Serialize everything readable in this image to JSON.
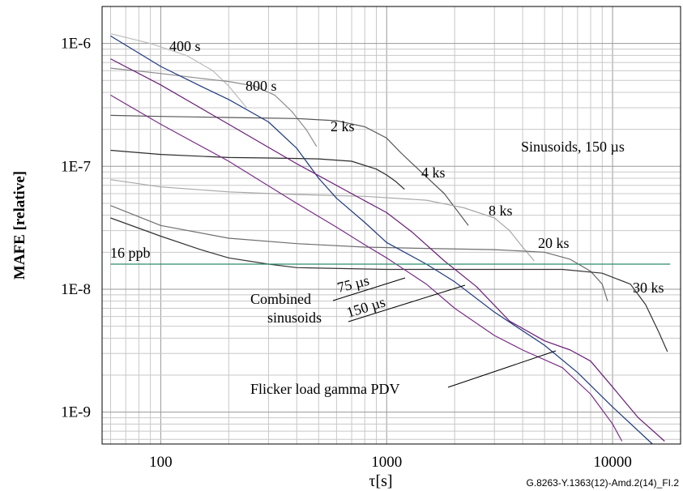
{
  "chart_data": {
    "type": "line",
    "title": "",
    "xlabel": "τ[s]",
    "ylabel": "MAFE [relative]",
    "x_scale": "log",
    "y_scale": "log",
    "xlim": [
      55,
      20000
    ],
    "ylim": [
      5.5e-10,
      2e-06
    ],
    "grid": true,
    "x_ticks": [
      {
        "value": 100,
        "label": "100"
      },
      {
        "value": 1000,
        "label": "1000"
      },
      {
        "value": 10000,
        "label": "10000"
      }
    ],
    "y_ticks": [
      {
        "value": 1e-06,
        "label": "1E-6"
      },
      {
        "value": 1e-07,
        "label": "1E-7"
      },
      {
        "value": 1e-08,
        "label": "1E-8"
      },
      {
        "value": 1e-09,
        "label": "1E-9"
      }
    ],
    "series": [
      {
        "name": "400 s",
        "color": "#bbbbbb",
        "x": [
          60,
          90,
          130,
          170,
          200,
          240
        ],
        "y": [
          1.2e-06,
          1e-06,
          8e-07,
          6e-07,
          4.5e-07,
          3e-07
        ]
      },
      {
        "name": "800 s",
        "color": "#8c8c8c",
        "x": [
          60,
          100,
          150,
          200,
          260,
          320,
          380,
          440,
          490
        ],
        "y": [
          6.3e-07,
          5.7e-07,
          5.2e-07,
          4.9e-07,
          4.5e-07,
          3.8e-07,
          2.8e-07,
          2e-07,
          1.45e-07
        ]
      },
      {
        "name": "2 ks",
        "color": "#555555",
        "x": [
          60,
          100,
          200,
          400,
          600,
          800,
          1000,
          1150,
          1300,
          1800,
          2300
        ],
        "y": [
          2.6e-07,
          2.55e-07,
          2.5e-07,
          2.45e-07,
          2.35e-07,
          2.1e-07,
          1.7e-07,
          1.3e-07,
          1.05e-07,
          6e-08,
          3.3e-08
        ]
      },
      {
        "name": "4 ks",
        "color": "#2b2b2b",
        "x": [
          60,
          100,
          200,
          300,
          500,
          700,
          900,
          1000,
          1100,
          1200
        ],
        "y": [
          1.35e-07,
          1.25e-07,
          1.18e-07,
          1.17e-07,
          1.15e-07,
          1.1e-07,
          9.5e-08,
          8.5e-08,
          7.5e-08,
          6.5e-08
        ]
      },
      {
        "name": "8 ks",
        "color": "#a8a8a8",
        "x": [
          60,
          100,
          200,
          400,
          800,
          1500,
          2200,
          3000,
          3500,
          4000,
          4500
        ],
        "y": [
          7.8e-08,
          6.8e-08,
          6.2e-08,
          5.9e-08,
          5.7e-08,
          5.3e-08,
          4.6e-08,
          3.8e-08,
          3e-08,
          2.2e-08,
          1.7e-08
        ]
      },
      {
        "name": "20 ks",
        "color": "#6e6e6e",
        "x": [
          60,
          100,
          200,
          400,
          800,
          1500,
          3000,
          5000,
          6500,
          8000,
          9000,
          9500
        ],
        "y": [
          4.8e-08,
          3.3e-08,
          2.6e-08,
          2.35e-08,
          2.2e-08,
          2.15e-08,
          2.1e-08,
          2e-08,
          1.75e-08,
          1.4e-08,
          1.1e-08,
          8e-09
        ]
      },
      {
        "name": "30 ks",
        "color": "#333333",
        "x": [
          60,
          100,
          150,
          200,
          300,
          400,
          1000,
          3000,
          6000,
          9000,
          12000,
          14000,
          16000,
          17500
        ],
        "y": [
          3.8e-08,
          2.7e-08,
          2.1e-08,
          1.8e-08,
          1.6e-08,
          1.5e-08,
          1.45e-08,
          1.45e-08,
          1.45e-08,
          1.35e-08,
          1.1e-08,
          7.5e-09,
          4.5e-09,
          3.1e-09
        ]
      },
      {
        "name": "Flicker load gamma PDV",
        "color": "#1f3a80",
        "x": [
          60,
          100,
          150,
          200,
          300,
          400,
          500,
          600,
          800,
          1000,
          1500,
          2000,
          3000,
          5000,
          7000,
          10000,
          15000
        ],
        "y": [
          1.15e-06,
          6.5e-07,
          4.5e-07,
          3.5e-07,
          2.3e-07,
          1.4e-07,
          8e-08,
          5.5e-08,
          3.5e-08,
          2.4e-08,
          1.6e-08,
          1.15e-08,
          6.5e-09,
          3.5e-09,
          2.1e-09,
          1.1e-09,
          5.5e-10
        ]
      },
      {
        "name": "75 µs",
        "color": "#6a1d79",
        "x": [
          60,
          100,
          200,
          400,
          700,
          1000,
          1300,
          1800,
          2500,
          3500,
          5000,
          6500,
          8000,
          10000,
          13000,
          17000
        ],
        "y": [
          7.5e-07,
          4.6e-07,
          2.2e-07,
          1.05e-07,
          6e-08,
          4.2e-08,
          2.9e-08,
          1.7e-08,
          1.05e-08,
          5.5e-09,
          3.8e-09,
          3.2e-09,
          2.6e-09,
          1.6e-09,
          9e-10,
          5.8e-10
        ]
      },
      {
        "name": "150 µs",
        "color": "#7a2d88",
        "x": [
          60,
          100,
          200,
          400,
          600,
          800,
          1000,
          1500,
          2000,
          3000,
          4000,
          6000,
          8000,
          10000,
          11000
        ],
        "y": [
          3.8e-07,
          2.2e-07,
          1.1e-07,
          5e-08,
          3.2e-08,
          2.3e-08,
          1.8e-08,
          1.1e-08,
          7e-09,
          4.2e-09,
          3.2e-09,
          2.3e-09,
          1.4e-09,
          8e-10,
          5.8e-10
        ]
      },
      {
        "name": "16 ppb",
        "color": "#2e8b6a",
        "x": [
          60,
          18000
        ],
        "y": [
          1.6e-08,
          1.6e-08
        ]
      }
    ],
    "annotations": [
      "400 s",
      "800 s",
      "2 ks",
      "4 ks",
      "8 ks",
      "20 ks",
      "30 ks",
      "Sinusoids, 150 µs",
      "16 ppb",
      "75 µs",
      "150 µs",
      "Combined",
      "sinusoids",
      "Flicker load gamma PDV"
    ]
  },
  "figure_ref": "G.8263-Y.1363(12)-Amd.2(14)_FI.2"
}
